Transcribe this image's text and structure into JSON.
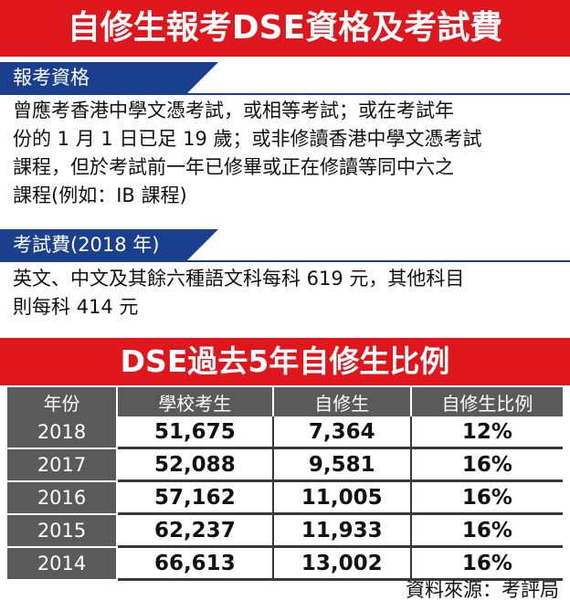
{
  "title": "自修生報考DSE資格及考試費",
  "section1": {
    "heading": "報考資格",
    "lines": [
      "曾應考香港中學文憑考試，或相等考試；或在考試年",
      "份的 1 月 1 日已足 19 歲；或非修讀香港中學文憑考試",
      "課程，但於考試前一年已修畢或正在修讀等同中六之",
      "課程(例如：IB 課程)"
    ]
  },
  "section2": {
    "heading": "考試費(2018 年)",
    "lines": [
      "英文、中文及其餘六種語文科每科 619 元，其他科目",
      "則每科 414 元"
    ]
  },
  "table_title": "DSE過去5年自修生比例",
  "table": {
    "headers": [
      "年份",
      "學校考生",
      "自修生",
      "自修生比例"
    ],
    "rows": [
      [
        "2018",
        "51,675",
        "7,364",
        "12%"
      ],
      [
        "2017",
        "52,088",
        "9,581",
        "16%"
      ],
      [
        "2016",
        "57,162",
        "11,005",
        "16%"
      ],
      [
        "2015",
        "62,237",
        "11,933",
        "16%"
      ],
      [
        "2014",
        "66,613",
        "13,002",
        "16%"
      ]
    ]
  },
  "source": "資料來源：考評局",
  "colors": {
    "banner": "#e0161d",
    "section": "#1b3f8f",
    "table_header": "#5a5a5a"
  }
}
